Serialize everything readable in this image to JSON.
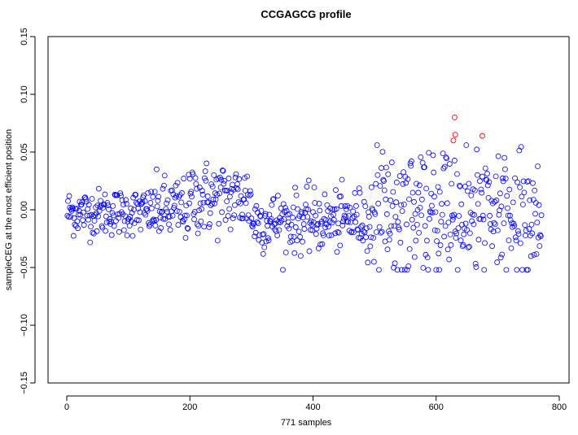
{
  "chart_data": {
    "type": "scatter",
    "title": "CCGAGCG profile",
    "xlabel": "771 samples",
    "ylabel": "sampleCEG at the most efficient position",
    "xlim": [
      -30,
      800
    ],
    "ylim": [
      -0.15,
      0.15
    ],
    "x_ticks": [
      0,
      200,
      400,
      600,
      800
    ],
    "y_ticks": [
      -0.15,
      -0.1,
      -0.05,
      0.0,
      0.05,
      0.1,
      0.15
    ],
    "x_tick_labels": [
      "0",
      "200",
      "400",
      "600",
      "800"
    ],
    "y_tick_labels": [
      "−0.15",
      "−0.10",
      "−0.05",
      "0.00",
      "0.05",
      "0.10",
      "0.15"
    ],
    "grid": false,
    "legend": "none",
    "marker": "open-circle",
    "colors": {
      "normal": "#0000ff",
      "highlight": "#ff0000",
      "axis": "#000000"
    },
    "highlight_points": [
      {
        "x": 630,
        "y": 0.08
      },
      {
        "x": 631,
        "y": 0.065
      },
      {
        "x": 628,
        "y": 0.06
      },
      {
        "x": 675,
        "y": 0.064
      }
    ],
    "points_summary": {
      "n": 771,
      "segments": [
        {
          "x_range": [
            1,
            140
          ],
          "mean": -0.002,
          "spread": 0.01
        },
        {
          "x_range": [
            140,
            200
          ],
          "mean": 0.0,
          "spread": 0.014
        },
        {
          "x_range": [
            200,
            300
          ],
          "mean": 0.01,
          "spread": 0.016
        },
        {
          "x_range": [
            300,
            450
          ],
          "mean": -0.01,
          "spread": 0.013
        },
        {
          "x_range": [
            450,
            490
          ],
          "mean": -0.008,
          "spread": 0.013
        },
        {
          "x_range": [
            490,
            771
          ],
          "mean": -0.008,
          "spread": 0.025
        }
      ]
    }
  }
}
